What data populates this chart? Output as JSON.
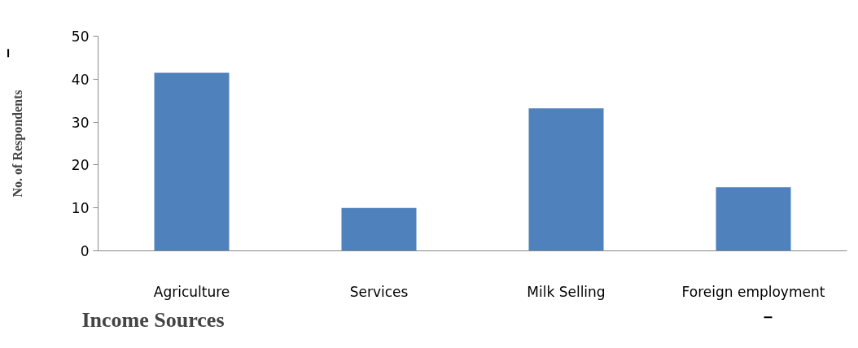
{
  "chart_data": {
    "type": "bar",
    "xlabel": "Income Sources",
    "ylabel": "No. of Respondents",
    "categories": [
      "Agriculture",
      "Services",
      "Milk Selling",
      "Foreign employment"
    ],
    "values": [
      41.5,
      10,
      33.2,
      14.8
    ],
    "color": "#4f81bd",
    "ylim": [
      0,
      50
    ],
    "yticks": [
      0,
      10,
      20,
      30,
      40,
      50
    ],
    "grid": false
  }
}
